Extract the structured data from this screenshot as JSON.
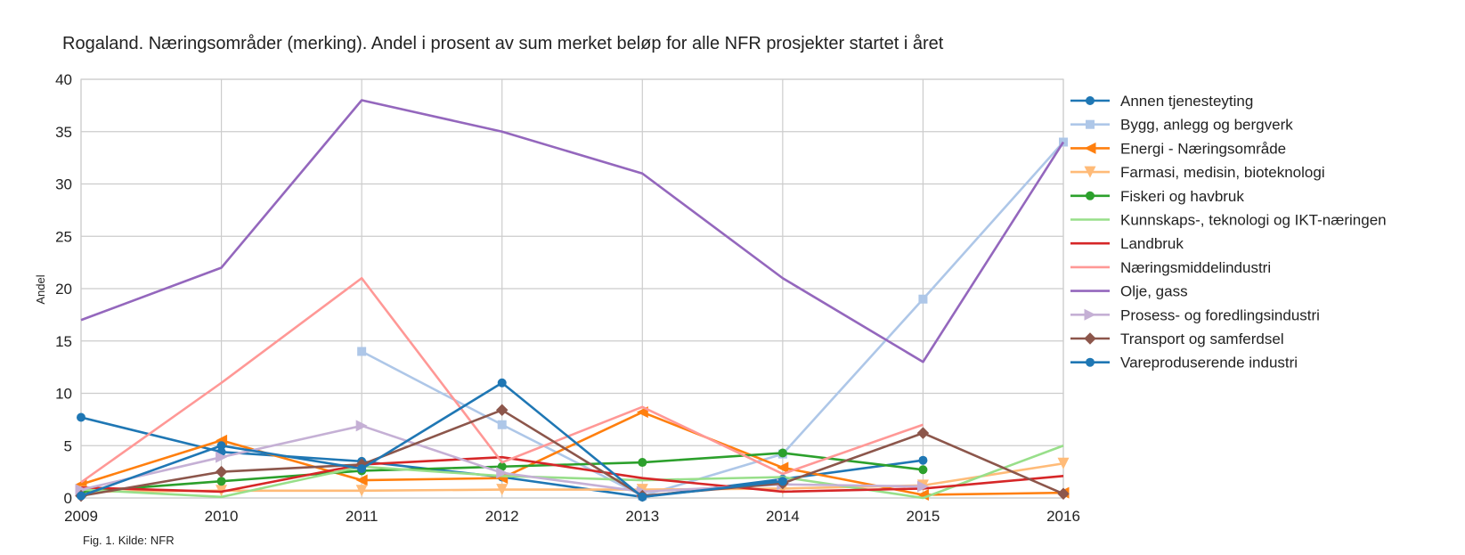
{
  "chart_data": {
    "type": "line",
    "title": "Rogaland. Næringsområder (merking). Andel i prosent av sum merket beløp for alle NFR prosjekter startet i året",
    "ylabel": "Andel",
    "xlabel": "",
    "caption": "Fig. 1. Kilde: NFR",
    "x": [
      2009,
      2010,
      2011,
      2012,
      2013,
      2014,
      2015,
      2016
    ],
    "xlim": [
      2009,
      2016
    ],
    "ylim": [
      0,
      40
    ],
    "yticks": [
      0,
      5,
      10,
      15,
      20,
      25,
      30,
      35,
      40
    ],
    "grid": true,
    "legend_position": "right",
    "series": [
      {
        "name": "Annen tjenesteyting",
        "color": "#1f77b4",
        "marker": "circle",
        "values": [
          7.7,
          4.4,
          3.5,
          2.0,
          0.1,
          1.8,
          3.6,
          null
        ]
      },
      {
        "name": "Bygg, anlegg og bergverk",
        "color": "#aec7e8",
        "marker": "square",
        "values": [
          null,
          null,
          14.0,
          7.0,
          0.2,
          4.2,
          19.0,
          34.0
        ]
      },
      {
        "name": "Energi - Næringsområde",
        "color": "#ff7f0e",
        "marker": "triangle-left",
        "values": [
          1.3,
          5.5,
          1.7,
          1.9,
          8.2,
          2.9,
          0.3,
          0.5
        ]
      },
      {
        "name": "Farmasi, medisin, bioteknologi",
        "color": "#ffbb78",
        "marker": "triangle-down",
        "values": [
          0.6,
          0.7,
          0.7,
          0.8,
          0.8,
          0.9,
          1.2,
          3.3
        ]
      },
      {
        "name": "Fiskeri og havbruk",
        "color": "#2ca02c",
        "marker": "circle",
        "values": [
          0.6,
          1.6,
          2.6,
          3.0,
          3.4,
          4.3,
          2.7,
          null
        ]
      },
      {
        "name": "Kunnskaps-, teknologi og IKT-næringen",
        "color": "#98df8a",
        "marker": "none",
        "values": [
          0.8,
          0.1,
          3.0,
          2.1,
          1.7,
          2.0,
          0.0,
          5.0
        ]
      },
      {
        "name": "Landbruk",
        "color": "#d62728",
        "marker": "none",
        "values": [
          1.0,
          0.6,
          3.2,
          3.9,
          1.9,
          0.6,
          0.9,
          2.1
        ]
      },
      {
        "name": "Næringsmiddelindustri",
        "color": "#ff9896",
        "marker": "none",
        "values": [
          1.5,
          11.0,
          21.0,
          3.4,
          8.7,
          2.3,
          7.0,
          null
        ]
      },
      {
        "name": "Olje, gass",
        "color": "#9467bd",
        "marker": "none",
        "values": [
          17.0,
          22.0,
          38.0,
          35.0,
          31.0,
          21.0,
          13.0,
          34.0
        ]
      },
      {
        "name": "Prosess- og foredlingsindustri",
        "color": "#c5b0d5",
        "marker": "triangle-right",
        "values": [
          0.8,
          3.9,
          6.9,
          2.4,
          0.6,
          1.3,
          1.1,
          null
        ]
      },
      {
        "name": "Transport og samferdsel",
        "color": "#8c564b",
        "marker": "diamond",
        "values": [
          0.2,
          2.5,
          3.2,
          8.4,
          0.2,
          1.4,
          6.2,
          0.4
        ]
      },
      {
        "name": "Vareproduserende industri",
        "color": "#1f77b4",
        "marker": "circle",
        "values": [
          0.2,
          5.0,
          2.8,
          11.0,
          0.1,
          1.6,
          null,
          null
        ]
      }
    ]
  }
}
